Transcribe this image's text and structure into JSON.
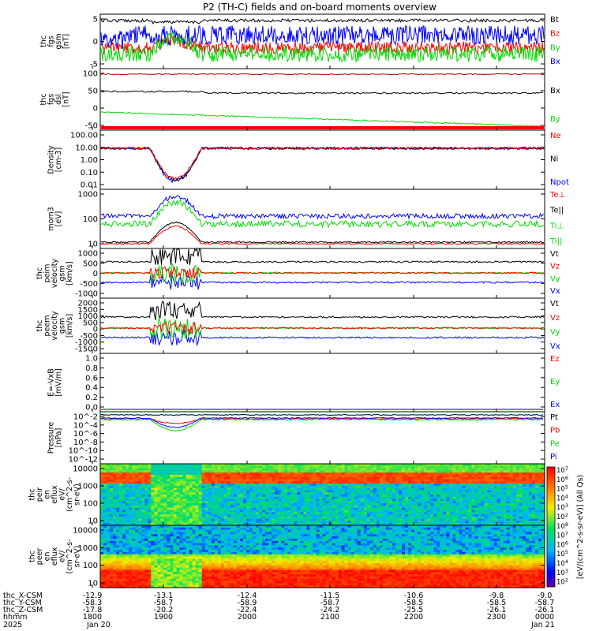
{
  "title": "P2 (TH-C) fields and on-board moments overview",
  "chart_data": {
    "type": "line",
    "x_axis": {
      "label": "hhmm",
      "year": "2025",
      "ticks": [
        "1800",
        "1900",
        "2000",
        "2100",
        "2200",
        "2300",
        "0000"
      ],
      "dates": [
        "Jan 20",
        "Jan 21"
      ],
      "range": [
        "2025-01-20 17:00",
        "2025-01-21 00:00"
      ],
      "ephemeris": [
        {
          "name": "thc_X-CSM",
          "values": [
            "-12.9",
            "-13.1",
            "-12.4",
            "-11.5",
            "-10.6",
            "-9.8",
            "-9.0"
          ]
        },
        {
          "name": "thc_Y-CSM",
          "values": [
            "-58.3",
            "-58.7",
            "-58.9",
            "-58.7",
            "-58.5",
            "-58.5",
            "-58.7"
          ]
        },
        {
          "name": "thc_Z-CSM",
          "values": [
            "-17.8",
            "-20.2",
            "-22.4",
            "-24.2",
            "-25.5",
            "-26.1",
            "-26.1"
          ]
        }
      ]
    },
    "panels": [
      {
        "id": "fgs-gsm",
        "ylabel": [
          "thc",
          "fgs",
          "gsm",
          "[nT]"
        ],
        "yticks": [
          "5",
          "0",
          "-5"
        ],
        "ylim": [
          -10,
          9
        ],
        "legend": [
          {
            "name": "Bt",
            "color": "#000000"
          },
          {
            "name": "Bz",
            "color": "#ff0000"
          },
          {
            "name": "By",
            "color": "#00dd00"
          },
          {
            "name": "Bx",
            "color": "#0000ff"
          }
        ]
      },
      {
        "id": "fgs-dsl",
        "ylabel": [
          "thc",
          "fgs",
          "dsl",
          "[nT]"
        ],
        "yticks": [
          "100",
          "50",
          "0",
          "-50"
        ],
        "ylim": [
          -90,
          105
        ],
        "legend": [
          {
            "name": "Bx",
            "color": "#000000"
          },
          {
            "name": "By",
            "color": "#00dd00"
          }
        ]
      },
      {
        "id": "density",
        "ylabel": [
          "Density",
          "[cm-3]"
        ],
        "yticks": [
          "100.00",
          "10.00",
          "1.00",
          "0.10",
          "0.01"
        ],
        "log": true,
        "legend": [
          {
            "name": "Ne",
            "color": "#ff0000"
          },
          {
            "name": "Ni",
            "color": "#000000"
          },
          {
            "name": "Npot",
            "color": "#0000ff"
          }
        ]
      },
      {
        "id": "temperature",
        "ylabel": [
          "mom3",
          "[eV]"
        ],
        "yticks": [
          "1000",
          "100",
          "10"
        ],
        "log": true,
        "legend": [
          {
            "name": "Te⊥",
            "color": "#ff0000"
          },
          {
            "name": "Te||",
            "color": "#000000"
          },
          {
            "name": "Ti⊥",
            "color": "#00dd00"
          },
          {
            "name": "Ti||",
            "color": "#00dd00"
          }
        ]
      },
      {
        "id": "peim-velocity",
        "ylabel": [
          "thc",
          "peim",
          "velocity",
          "gsm",
          "[km/s]"
        ],
        "yticks": [
          "1000",
          "500",
          "0",
          "-500",
          "-1000"
        ],
        "ylim": [
          -1000,
          1000
        ],
        "legend": [
          {
            "name": "Vt",
            "color": "#000000"
          },
          {
            "name": "Vz",
            "color": "#ff0000"
          },
          {
            "name": "Vy",
            "color": "#00dd00"
          },
          {
            "name": "Vx",
            "color": "#0000ff"
          }
        ]
      },
      {
        "id": "peem-velocity",
        "ylabel": [
          "thc",
          "peem",
          "velocity",
          "gsm",
          "[km/s]"
        ],
        "yticks": [
          "2000",
          "1500",
          "1000",
          "500",
          "0",
          "-500",
          "-1000",
          "-1500"
        ],
        "ylim": [
          -1500,
          2000
        ],
        "legend": [
          {
            "name": "Vt",
            "color": "#000000"
          },
          {
            "name": "Vz",
            "color": "#ff0000"
          },
          {
            "name": "Vy",
            "color": "#00dd00"
          },
          {
            "name": "Vx",
            "color": "#0000ff"
          }
        ]
      },
      {
        "id": "efield",
        "ylabel": [
          "E=-VxB",
          "[mV/m]"
        ],
        "yticks": [
          "1.0",
          "0.8",
          "0.6",
          "0.4",
          "0.2",
          "0.0"
        ],
        "ylim": [
          -0.05,
          1.05
        ],
        "legend": [
          {
            "name": "Ez",
            "color": "#ff0000"
          },
          {
            "name": "Ey",
            "color": "#00dd00"
          },
          {
            "name": "Ex",
            "color": "#0000ff"
          }
        ]
      },
      {
        "id": "pressure",
        "ylabel": [
          "Pressure",
          "[nPa]"
        ],
        "yticks": [
          "10^-2",
          "10^-4",
          "10^-6",
          "10^-8",
          "10^-10",
          "10^-12"
        ],
        "log": true,
        "legend": [
          {
            "name": "Pt",
            "color": "#000000"
          },
          {
            "name": "Pb",
            "color": "#ff0000"
          },
          {
            "name": "Pe",
            "color": "#00dd00"
          },
          {
            "name": "Pi",
            "color": "#0000ff"
          }
        ]
      },
      {
        "id": "peir-eflux",
        "type": "heatmap",
        "ylabel": [
          "thc",
          "peir",
          "en",
          "eflux",
          "eV/",
          "(cm^2-s-",
          "sr-eV)"
        ],
        "yticks": [
          "10000",
          "1000",
          "100",
          "10"
        ]
      },
      {
        "id": "peer-eflux",
        "type": "heatmap",
        "ylabel": [
          "thc",
          "peer",
          "en",
          "eflux",
          "eV/",
          "(cm^2-s-",
          "sr-eV)"
        ],
        "yticks": [
          "10000",
          "1000",
          "100",
          "10"
        ]
      }
    ],
    "colorbar": {
      "label": "[eV/(cm^2-s-sr-eV)] (All Qs)",
      "ticks": [
        "10^7",
        "10^6",
        "10^5",
        "10^4",
        "10^3",
        "10^2",
        "10^8",
        "10^7",
        "10^6",
        "10^5",
        "10^4",
        "10^3",
        "10^2"
      ]
    }
  }
}
